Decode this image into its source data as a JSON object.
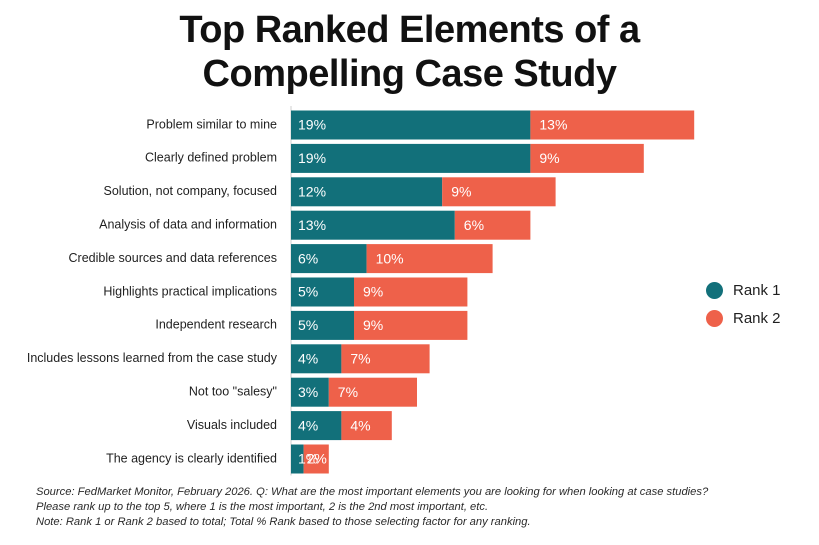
{
  "header": {
    "title_line1": "Top Ranked Elements of a",
    "title_line2": "Compelling Case Study"
  },
  "legend": {
    "rank1": "Rank 1",
    "rank2": "Rank 2"
  },
  "colors": {
    "rank1": "#12707a",
    "rank2": "#ee614a"
  },
  "footnote": {
    "line1": "Source: FedMarket Monitor, February 2026. Q: What are the most important elements you are looking for when looking at case studies?",
    "line2": "Please rank up to the top 5, where 1 is the most important, 2 is the 2nd most important, etc.",
    "line3": "Note: Rank 1 or Rank 2 based to total; Total % Rank based to those selecting factor for any ranking."
  },
  "chart_data": {
    "type": "bar",
    "orientation": "horizontal",
    "stacked": true,
    "title": "Top Ranked Elements of a Compelling Case Study",
    "categories": [
      "Problem similar to mine",
      "Clearly defined problem",
      "Solution, not company, focused",
      "Analysis of data and information",
      "Credible sources and data references",
      "Highlights practical implications",
      "Independent research",
      "Includes lessons learned from the case study",
      "Not too \"salesy\"",
      "Visuals included",
      "The agency is clearly identified"
    ],
    "series": [
      {
        "name": "Rank 1",
        "values": [
          19,
          19,
          12,
          13,
          6,
          5,
          5,
          4,
          3,
          4,
          1
        ],
        "labels": [
          "19%",
          "19%",
          "12%",
          "13%",
          "6%",
          "5%",
          "5%",
          "4%",
          "3%",
          "4%",
          "1%"
        ]
      },
      {
        "name": "Rank 2",
        "values": [
          13,
          9,
          9,
          6,
          10,
          9,
          9,
          7,
          7,
          4,
          2
        ],
        "labels": [
          "13%",
          "9%",
          "9%",
          "6%",
          "10%",
          "9%",
          "9%",
          "7%",
          "7%",
          "4%",
          "2%"
        ]
      }
    ],
    "xlabel": "",
    "ylabel": "",
    "legend_position": "right",
    "grid": false
  }
}
